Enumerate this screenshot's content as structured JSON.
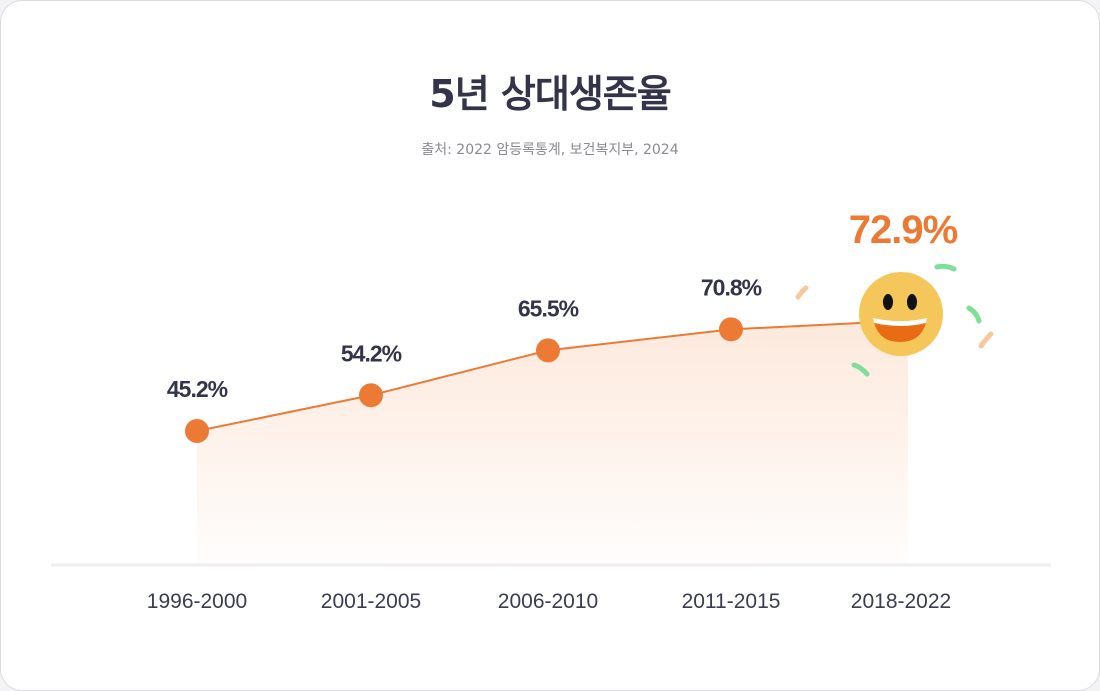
{
  "chart_data": {
    "type": "area",
    "title": "5년 상대생존율",
    "subtitle": "출처: 2022 암등록통계, 보건복지부, 2024",
    "categories": [
      "1996-2000",
      "2001-2005",
      "2006-2010",
      "2011-2015",
      "2018-2022"
    ],
    "values": [
      45.2,
      54.2,
      65.5,
      70.8,
      72.9
    ],
    "labels": [
      "45.2%",
      "54.2%",
      "65.5%",
      "70.8%",
      "72.9%"
    ],
    "unit": "%",
    "grid": false,
    "highlight": "last point (smiley-face emoji)",
    "colors": {
      "line": "#ec7a35",
      "highlight_label": "#ec7a35",
      "label": "#33344a",
      "fill": "#fdeee4",
      "emoji": "#f5c75a"
    }
  }
}
